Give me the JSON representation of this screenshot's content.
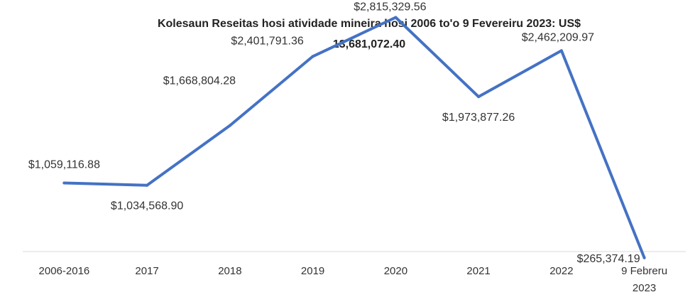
{
  "chart_data": {
    "type": "line",
    "title": "Kolesaun Reseitas hosi atividade mineira hosi 2006 to'o  9  Fevereiru 2023: US$",
    "subtitle": "13,681,072.40",
    "xlabel": "",
    "ylabel": "",
    "categories": [
      "2006-2016",
      "2017",
      "2018",
      "2019",
      "2020",
      "2021",
      "2022",
      "9 Febreru 2023"
    ],
    "category_lines": [
      [
        "2006-2016"
      ],
      [
        "2017"
      ],
      [
        "2018"
      ],
      [
        "2019"
      ],
      [
        "2020"
      ],
      [
        "2021"
      ],
      [
        "2022"
      ],
      [
        "9 Febreru",
        "2023"
      ]
    ],
    "values": [
      1059116.88,
      1034568.9,
      1668804.28,
      2401791.36,
      2815329.56,
      1973877.26,
      2462209.97,
      265374.19
    ],
    "data_labels": [
      "$1,059,116.88",
      "$1,034,568.90",
      "$1,668,804.28",
      "$2,401,791.36",
      "$2,815,329.56",
      "$1,973,877.26",
      "$2,462,209.97",
      "$265,374.19"
    ],
    "label_positions": [
      "above",
      "below",
      "above",
      "above",
      "above",
      "below",
      "above",
      "left"
    ],
    "ylim": [
      0,
      3000000
    ],
    "grid": false,
    "legend": "none",
    "line_color": "#4472C4",
    "axis_color": "#d9d9d9"
  }
}
